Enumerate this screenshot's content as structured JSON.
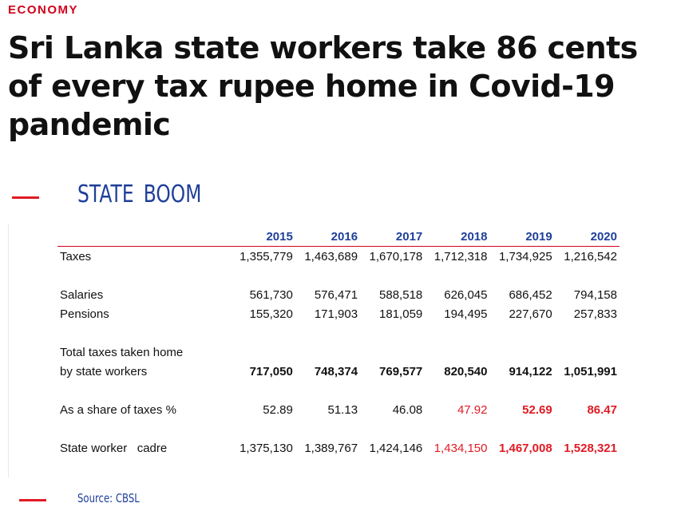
{
  "article": {
    "kicker": "ECONOMY",
    "headline": "Sri Lanka state workers take 86 cents of every tax rupee home in Covid-19 pandemic"
  },
  "table": {
    "title": "STATE BOOM",
    "years": [
      "2015",
      "2016",
      "2017",
      "2018",
      "2019",
      "2020"
    ],
    "rows": {
      "taxes": {
        "label": "Taxes",
        "values": [
          "1,355,779",
          "1,463,689",
          "1,670,178",
          "1,712,318",
          "1,734,925",
          "1,216,542"
        ]
      },
      "salaries": {
        "label": "Salaries",
        "values": [
          "561,730",
          "576,471",
          "588,518",
          "626,045",
          "686,452",
          "794,158"
        ]
      },
      "pensions": {
        "label": "Pensions",
        "values": [
          "155,320",
          "171,903",
          "181,059",
          "194,495",
          "227,670",
          "257,833"
        ]
      },
      "total": {
        "label_line1": "Total taxes taken home",
        "label_line2": "by state workers",
        "values": [
          "717,050",
          "748,374",
          "769,577",
          "820,540",
          "914,122",
          "1,051,991"
        ]
      },
      "share": {
        "label": "As a share of taxes %",
        "values": [
          "52.89",
          "51.13",
          "46.08",
          "47.92",
          "52.69",
          "86.47"
        ]
      },
      "cadre": {
        "label": "State worker   cadre",
        "values": [
          "1,375,130",
          "1,389,767",
          "1,424,146",
          "1,434,150",
          "1,467,008",
          "1,528,321"
        ]
      }
    },
    "highlight_color": "#e01b24",
    "header_color": "#1f3f99",
    "source": "Source: CBSL"
  }
}
